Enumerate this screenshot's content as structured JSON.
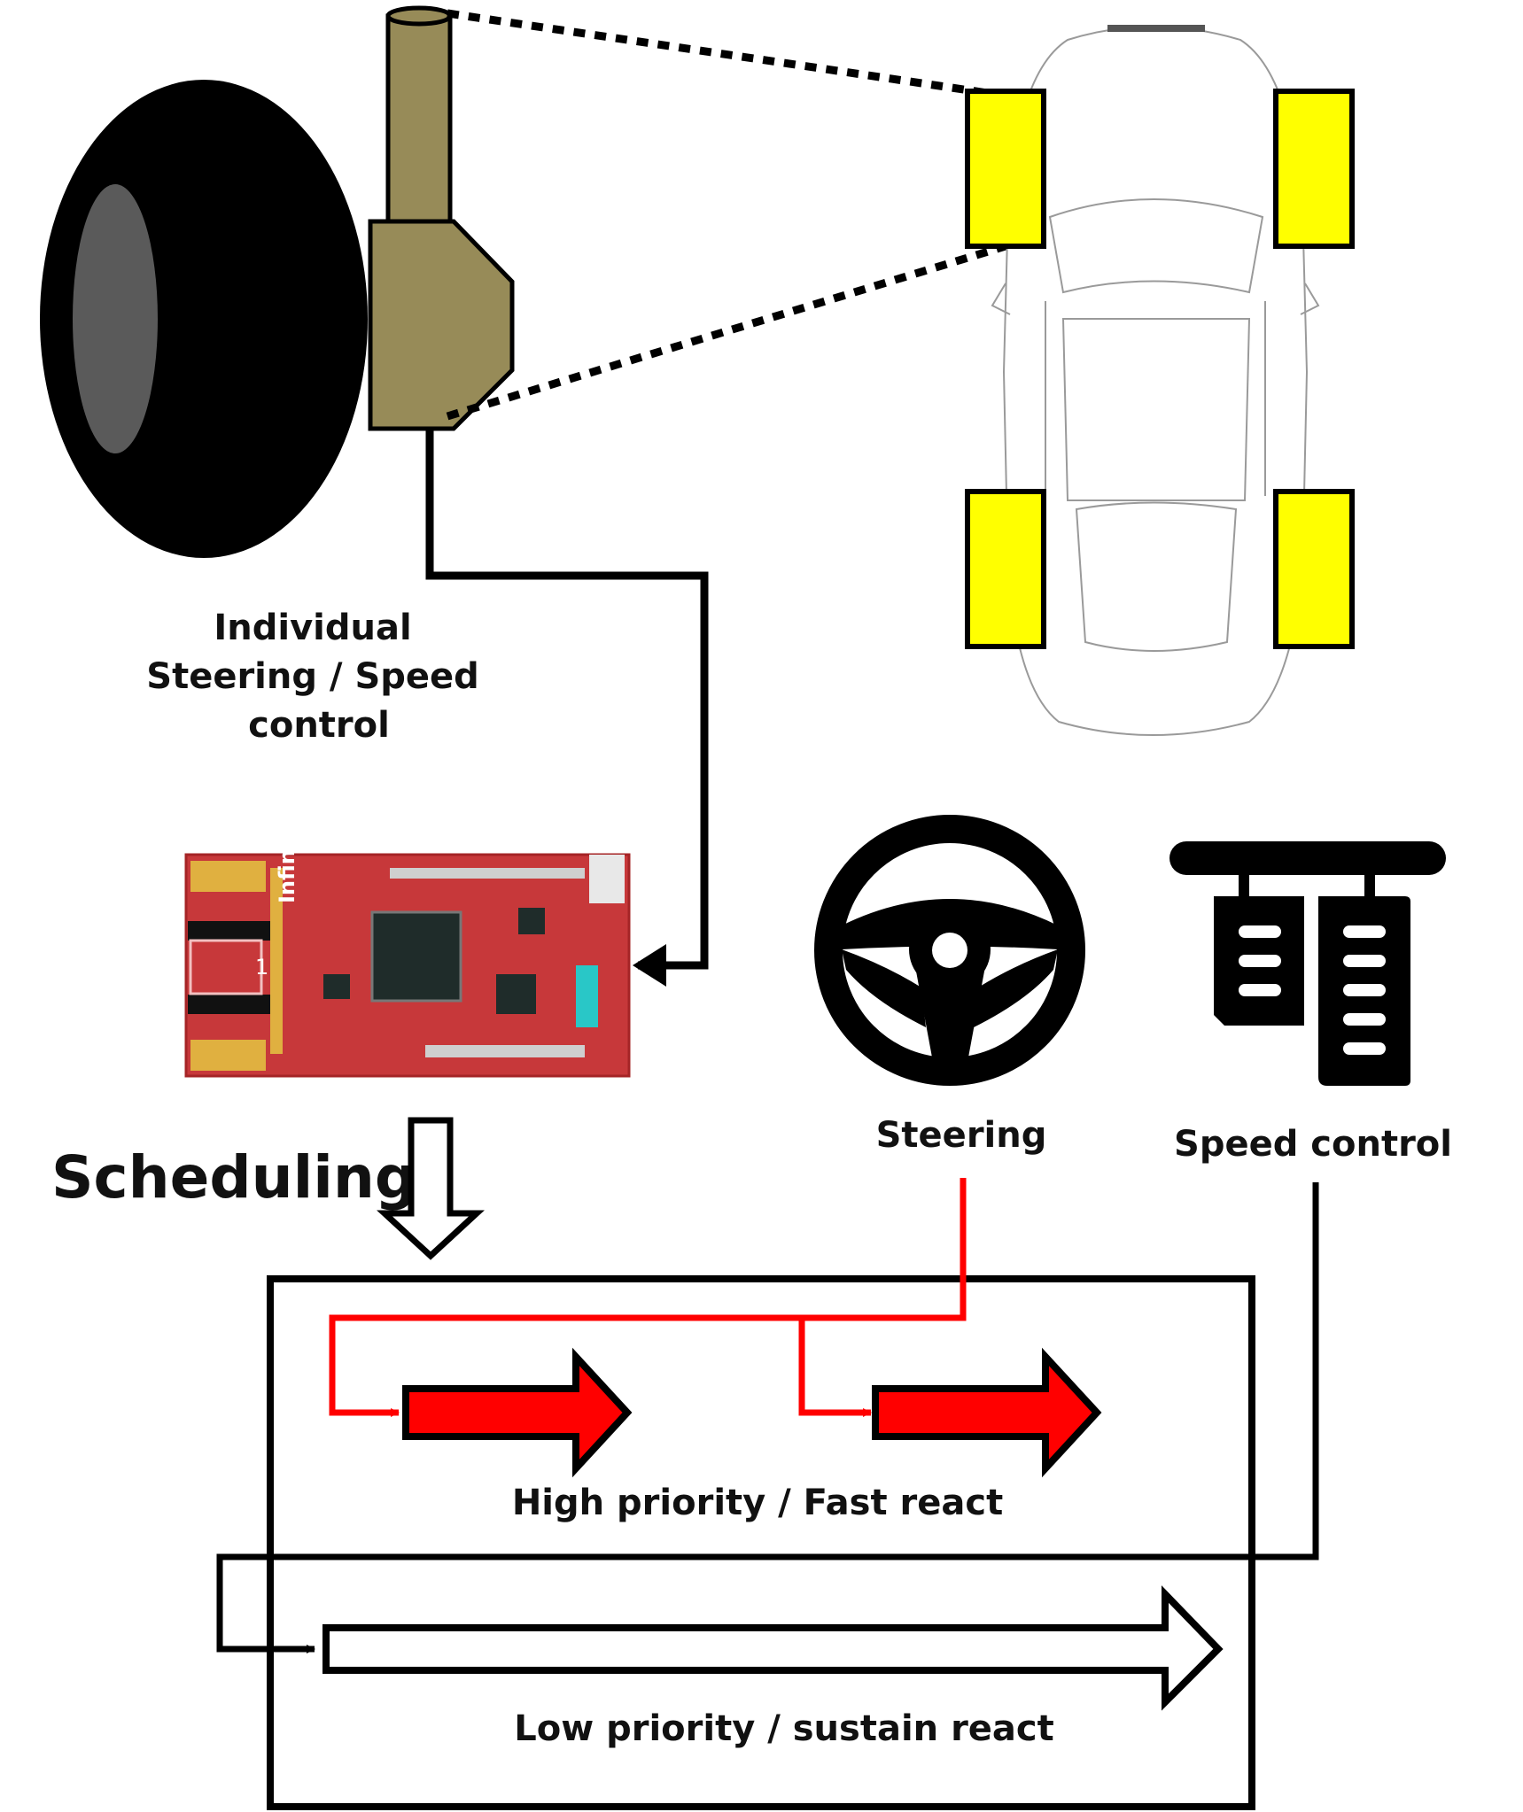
{
  "labels": {
    "wheel_module": [
      "Individual",
      "Steering / Speed",
      "control"
    ],
    "scheduling": "Scheduling",
    "steering": "Steering",
    "speed_control": "Speed control",
    "high_priority": "High priority / Fast react",
    "low_priority": "Low priority / sustain react"
  },
  "board": {
    "brand": "Infineon",
    "badge": "1"
  },
  "colors": {
    "wheel_highlight": "#ffff00",
    "steering_path": "#ff0000",
    "actuator": "#978b58",
    "board": "#c7383a",
    "tire": "#000000",
    "hub": "#5a5a5a"
  },
  "icons": [
    "tire-icon",
    "steering-actuator-icon",
    "car-top-view-icon",
    "controller-board-icon",
    "steering-wheel-icon",
    "pedals-icon",
    "hollow-down-arrow-icon"
  ]
}
